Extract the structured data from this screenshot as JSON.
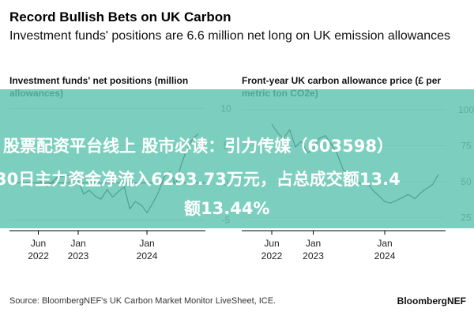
{
  "title": "Record Bullish Bets on UK Carbon",
  "subtitle": "Investment funds' positions are 6.6 million net long on UK emission allowances",
  "source": "Source: BloombergNEF's UK Carbon Market Monitor LiveSheet, ICE.",
  "brand": "BloombergNEF",
  "overlay": {
    "line1": "股票配资平台线上 股市必读：引力传媒（603598）",
    "line2": "30日主力资金净流入6293.73万元，占总成交额13.4",
    "line3": "额13.44%"
  },
  "colors": {
    "line": "#000000",
    "zero_line": "#000000",
    "grid": "#cccccc",
    "overlay": "#5fc4b0"
  },
  "chart_data": [
    {
      "type": "line",
      "title": "Investment funds' net positions (million allowances)",
      "x_tick_labels": [
        [
          "Jun",
          "2022"
        ],
        [
          "Jan",
          "2023"
        ],
        [
          "Jan",
          "2024"
        ]
      ],
      "x_tick_values": [
        2022.42,
        2023.0,
        2024.0
      ],
      "xlim": [
        2022.0,
        2024.85
      ],
      "y_ticks": [
        10,
        5,
        0,
        -5
      ],
      "ylim": [
        -6,
        11
      ],
      "zero_line": true,
      "series": [
        {
          "name": "Net positions",
          "x": [
            2022.42,
            2022.55,
            2022.7,
            2022.85,
            2023.0,
            2023.08,
            2023.16,
            2023.25,
            2023.33,
            2023.42,
            2023.5,
            2023.58,
            2023.67,
            2023.75,
            2023.83,
            2023.92,
            2024.0,
            2024.08,
            2024.17,
            2024.25,
            2024.33,
            2024.42,
            2024.5,
            2024.58,
            2024.67,
            2024.75
          ],
          "values": [
            0.5,
            -0.5,
            0.8,
            1.0,
            0.2,
            -1.5,
            -1.0,
            -1.8,
            -2.2,
            -0.9,
            -1.9,
            -1.2,
            -0.5,
            -3.5,
            -2.5,
            -3.0,
            -4.0,
            -2.8,
            -1.2,
            0.8,
            1.5,
            -0.2,
            2.5,
            4.5,
            6.0,
            6.6
          ]
        }
      ]
    },
    {
      "type": "line",
      "title": "Front-year UK carbon allowance price (£ per metric ton CO2e)",
      "x_tick_labels": [
        [
          "Jun",
          "2022"
        ],
        [
          "Jan",
          "2023"
        ],
        [
          "Jan",
          "2024"
        ]
      ],
      "x_tick_values": [
        2022.42,
        2023.0,
        2024.0
      ],
      "xlim": [
        2022.0,
        2024.85
      ],
      "y_ticks": [
        100,
        75,
        50,
        25
      ],
      "ylim": [
        18,
        106
      ],
      "series": [
        {
          "name": "Price",
          "x": [
            2022.42,
            2022.5,
            2022.58,
            2022.67,
            2022.75,
            2022.83,
            2022.92,
            2023.0,
            2023.08,
            2023.17,
            2023.25,
            2023.33,
            2023.42,
            2023.5,
            2023.58,
            2023.67,
            2023.75,
            2023.83,
            2023.92,
            2024.0,
            2024.08,
            2024.17,
            2024.25,
            2024.33,
            2024.42,
            2024.5,
            2024.58,
            2024.67,
            2024.75
          ],
          "values": [
            90,
            84,
            80,
            86,
            74,
            78,
            70,
            72,
            80,
            82,
            76,
            70,
            58,
            56,
            52,
            48,
            50,
            44,
            40,
            36,
            35,
            37,
            39,
            41,
            38,
            42,
            45,
            48,
            55
          ]
        }
      ]
    }
  ]
}
